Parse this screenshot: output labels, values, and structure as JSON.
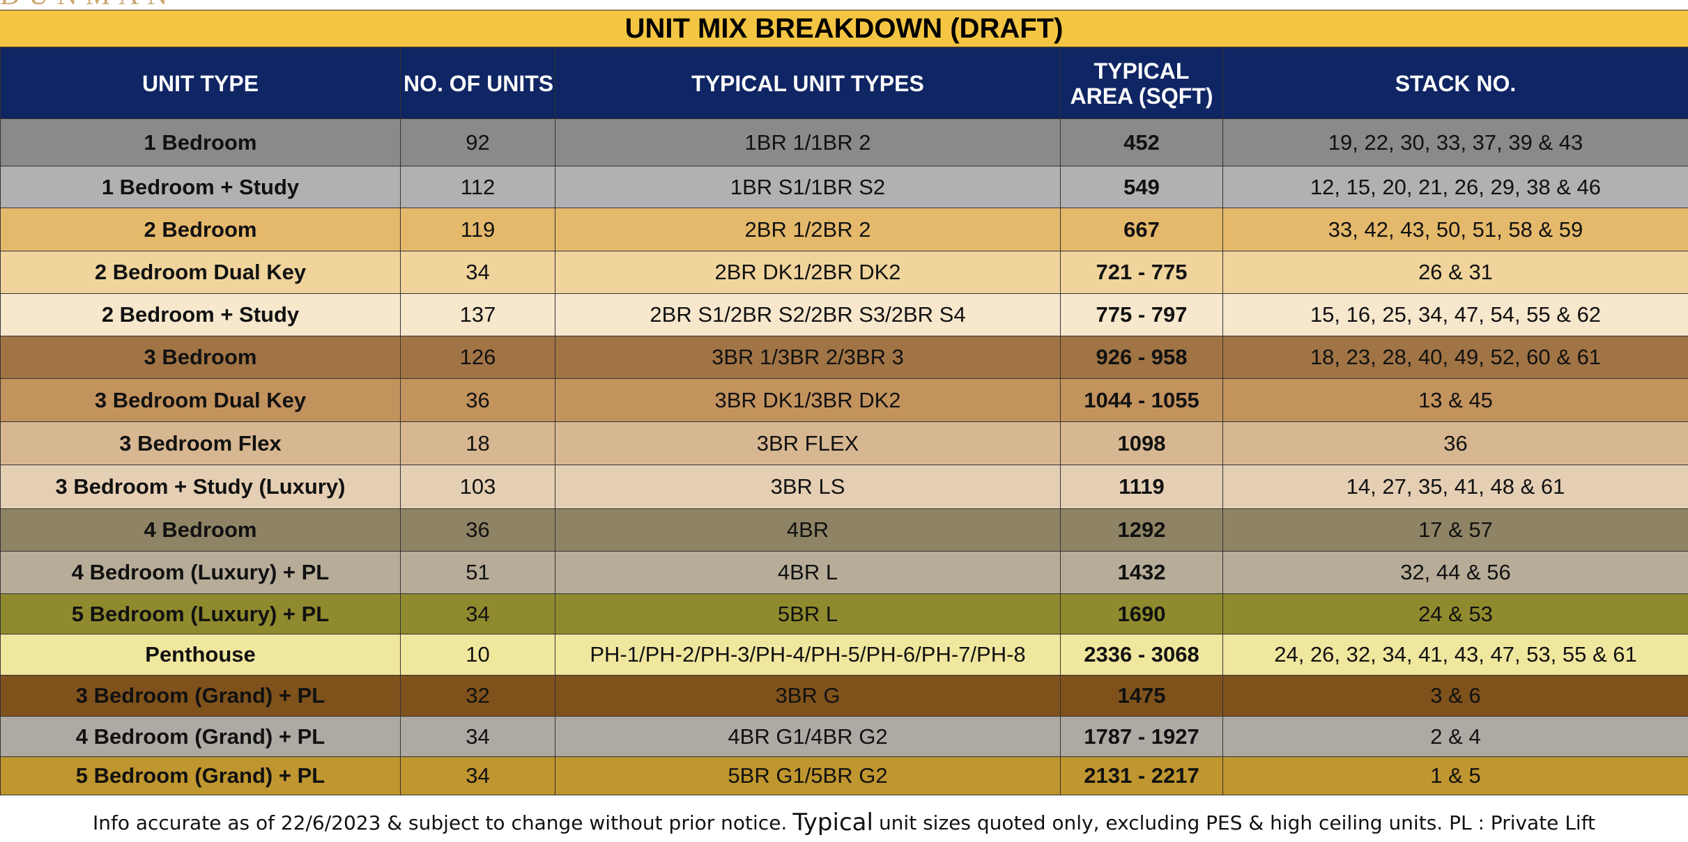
{
  "brand_fragment": "DUNMAN",
  "title": "UNIT MIX BREAKDOWN (DRAFT)",
  "table": {
    "headers": {
      "unit_type": "UNIT TYPE",
      "no_of_units": "NO. OF UNITS",
      "typical_unit_types": "TYPICAL UNIT TYPES",
      "typical_area": "TYPICAL AREA (SQFT)",
      "stack_no": "STACK NO."
    },
    "rows": [
      {
        "unit_type": "1 Bedroom",
        "units": "92",
        "typical_types": "1BR 1/1BR 2",
        "area": "452",
        "stacks": "19, 22, 30, 33, 37, 39 & 43",
        "color": "#8a8a8a"
      },
      {
        "unit_type": "1 Bedroom + Study",
        "units": "112",
        "typical_types": "1BR S1/1BR S2",
        "area": "549",
        "stacks": "12, 15, 20, 21, 26, 29, 38 & 46",
        "color": "#b1b1b3"
      },
      {
        "unit_type": "2 Bedroom",
        "units": "119",
        "typical_types": "2BR 1/2BR 2",
        "area": "667",
        "stacks": "33, 42, 43, 50, 51, 58 & 59",
        "color": "#e5b96c"
      },
      {
        "unit_type": "2 Bedroom Dual Key",
        "units": "34",
        "typical_types": "2BR DK1/2BR DK2",
        "area": "721 - 775",
        "stacks": "26 & 31",
        "color": "#f0d49c"
      },
      {
        "unit_type": "2 Bedroom + Study",
        "units": "137",
        "typical_types": "2BR S1/2BR S2/2BR S3/2BR S4",
        "area": "775 - 797",
        "stacks": "15, 16, 25, 34, 47, 54, 55 & 62",
        "color": "#f6e7cd"
      },
      {
        "unit_type": "3 Bedroom",
        "units": "126",
        "typical_types": "3BR 1/3BR 2/3BR 3",
        "area": "926 - 958",
        "stacks": "18, 23, 28, 40, 49, 52, 60 & 61",
        "color": "#a17445"
      },
      {
        "unit_type": "3 Bedroom Dual Key",
        "units": "36",
        "typical_types": "3BR DK1/3BR DK2",
        "area": "1044 - 1055",
        "stacks": "13 & 45",
        "color": "#c3935e"
      },
      {
        "unit_type": "3 Bedroom Flex",
        "units": "18",
        "typical_types": "3BR FLEX",
        "area": "1098",
        "stacks": "36",
        "color": "#d7b791"
      },
      {
        "unit_type": "3 Bedroom + Study (Luxury)",
        "units": "103",
        "typical_types": "3BR LS",
        "area": "1119",
        "stacks": "14, 27, 35, 41, 48 & 61",
        "color": "#e5cfb4"
      },
      {
        "unit_type": "4 Bedroom",
        "units": "36",
        "typical_types": "4BR",
        "area": "1292",
        "stacks": "17 & 57",
        "color": "#8e8465"
      },
      {
        "unit_type": "4 Bedroom (Luxury) + PL",
        "units": "51",
        "typical_types": "4BR L",
        "area": "1432",
        "stacks": "32, 44 & 56",
        "color": "#b6ac98"
      },
      {
        "unit_type": "5 Bedroom (Luxury) + PL",
        "units": "34",
        "typical_types": "5BR L",
        "area": "1690",
        "stacks": "24 & 53",
        "color": "#8f8a2e"
      },
      {
        "unit_type": "Penthouse",
        "units": "10",
        "typical_types": "PH-1/PH-2/PH-3/PH-4/PH-5/PH-6/PH-7/PH-8",
        "area": "2336 - 3068",
        "stacks": "24, 26, 32, 34, 41, 43, 47, 53, 55 & 61",
        "color": "#f0e79e"
      },
      {
        "unit_type": "3 Bedroom (Grand) + PL",
        "units": "32",
        "typical_types": "3BR G",
        "area": "1475",
        "stacks": "3 & 6",
        "color": "#7f521c"
      },
      {
        "unit_type": "4 Bedroom (Grand) + PL",
        "units": "34",
        "typical_types": "4BR G1/4BR G2",
        "area": "1787 - 1927",
        "stacks": "2 & 4",
        "color": "#aea9a2"
      },
      {
        "unit_type": "5 Bedroom (Grand) + PL",
        "units": "34",
        "typical_types": "5BR G1/5BR G2",
        "area": "2131 - 2217",
        "stacks": "1 & 5",
        "color": "#bf962f"
      }
    ]
  },
  "footnote": {
    "part1": "Info accurate as of 22/6/2023 & subject to change without prior notice.",
    "part2": "Typical",
    "part3": "unit sizes quoted only, excluding PES & high ceiling units. PL : Private Lift"
  }
}
